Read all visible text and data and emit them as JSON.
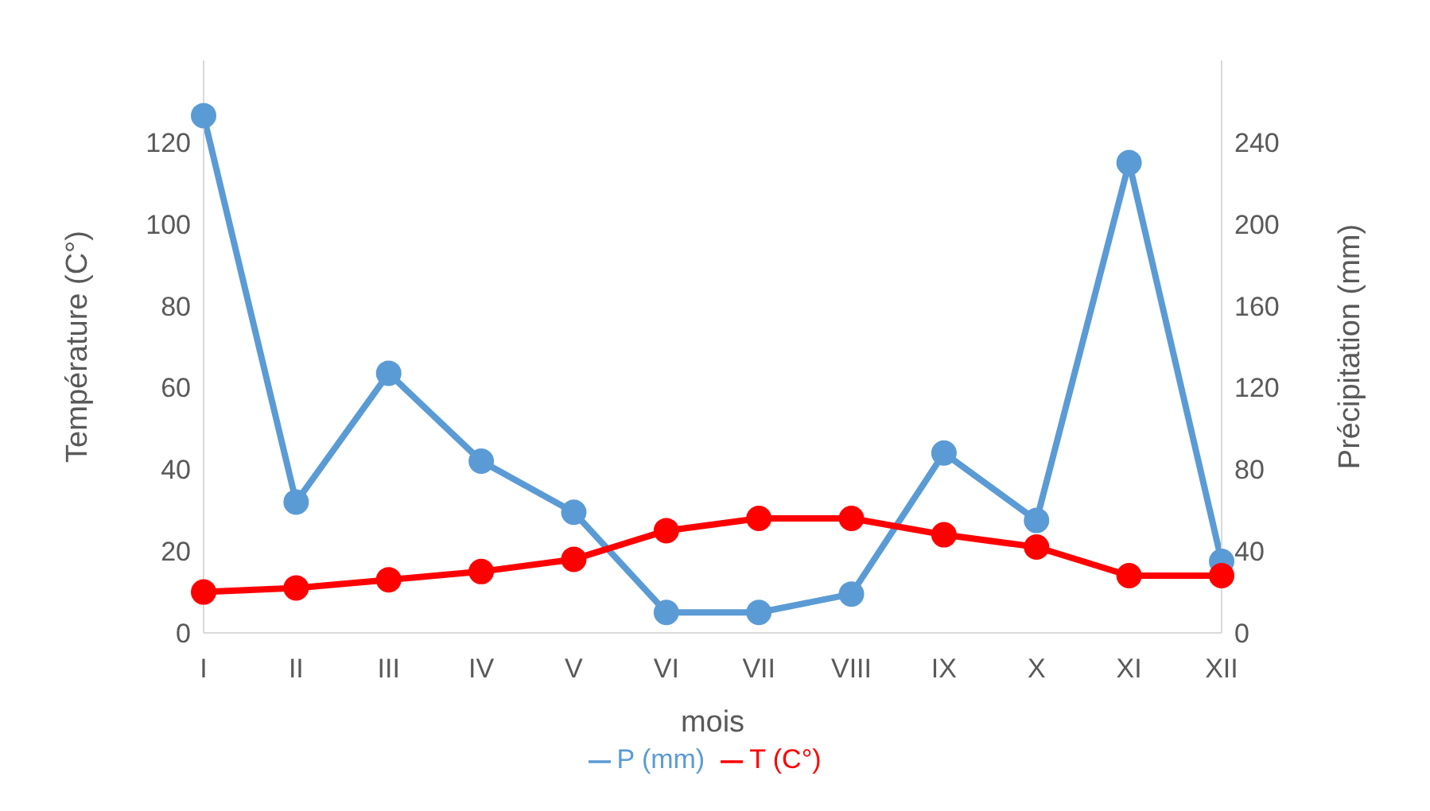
{
  "chart_data": {
    "type": "line",
    "xlabel": "mois",
    "ylabel": "Température (C°)",
    "y2label": "Précipitation (mm)",
    "categories": [
      "I",
      "II",
      "III",
      "IV",
      "V",
      "VI",
      "VII",
      "VIII",
      "IX",
      "X",
      "XI",
      "XII"
    ],
    "series": [
      {
        "name": "P (mm)",
        "color": "#5b9bd5",
        "axis": "y2",
        "values": [
          253,
          64,
          127,
          84,
          59,
          10,
          10,
          19,
          88,
          55,
          230,
          35
        ]
      },
      {
        "name": "T (C°)",
        "color": "#ff0000",
        "values": [
          10,
          11,
          13,
          15,
          18,
          25,
          28,
          28,
          24,
          21,
          14,
          14
        ]
      }
    ],
    "ylim": [
      0,
      140
    ],
    "yticks": [
      0,
      20,
      40,
      60,
      80,
      100,
      120
    ],
    "y2lim": [
      0,
      280
    ],
    "y2ticks": [
      0,
      40,
      80,
      120,
      160,
      200,
      240
    ],
    "legend": "bottom",
    "marker": "circle",
    "line_style": "solid"
  }
}
